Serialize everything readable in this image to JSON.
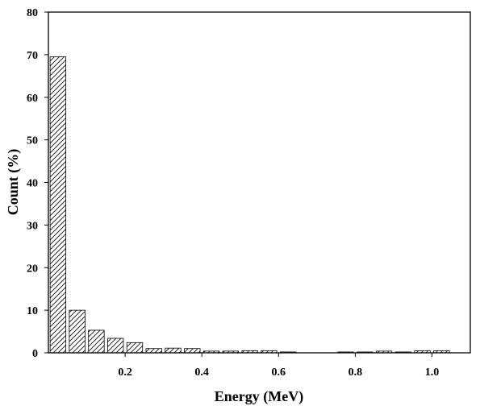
{
  "chart_data": {
    "type": "bar",
    "title": "",
    "xlabel": "Energy (MeV)",
    "ylabel": "Count (%)",
    "xlim": [
      0,
      1.1
    ],
    "ylim": [
      0,
      80
    ],
    "grid": false,
    "legend": "none",
    "bar_fill": "diagonal-hatch",
    "colors": {
      "stroke": "#000000",
      "background": "#ffffff"
    },
    "x_ticks": [
      {
        "value": 0.2,
        "label": "0.2"
      },
      {
        "value": 0.4,
        "label": "0.4"
      },
      {
        "value": 0.6,
        "label": "0.6"
      },
      {
        "value": 0.8,
        "label": "0.8"
      },
      {
        "value": 1.0,
        "label": "1.0"
      }
    ],
    "y_ticks": [
      {
        "value": 0,
        "label": "0"
      },
      {
        "value": 10,
        "label": "10"
      },
      {
        "value": 20,
        "label": "20"
      },
      {
        "value": 30,
        "label": "30"
      },
      {
        "value": 40,
        "label": "40"
      },
      {
        "value": 50,
        "label": "50"
      },
      {
        "value": 60,
        "label": "60"
      },
      {
        "value": 70,
        "label": "70"
      },
      {
        "value": 80,
        "label": "80"
      }
    ],
    "bin_width": 0.05,
    "x": [
      0.025,
      0.075,
      0.125,
      0.175,
      0.225,
      0.275,
      0.325,
      0.375,
      0.425,
      0.475,
      0.525,
      0.575,
      0.625,
      0.675,
      0.725,
      0.775,
      0.825,
      0.875,
      0.925,
      0.975,
      1.025
    ],
    "values": [
      69.5,
      10.0,
      5.3,
      3.4,
      2.4,
      1.0,
      1.1,
      1.0,
      0.4,
      0.4,
      0.5,
      0.5,
      0.2,
      0.0,
      0.0,
      0.2,
      0.2,
      0.4,
      0.2,
      0.5,
      0.5
    ]
  }
}
